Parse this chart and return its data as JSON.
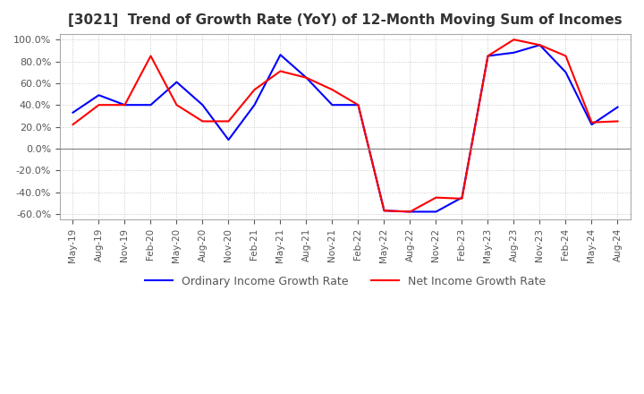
{
  "title": "[3021]  Trend of Growth Rate (YoY) of 12-Month Moving Sum of Incomes",
  "title_fontsize": 11,
  "ylim": [
    -0.65,
    1.05
  ],
  "yticks": [
    -0.6,
    -0.4,
    -0.2,
    0.0,
    0.2,
    0.4,
    0.6,
    0.8,
    1.0
  ],
  "background_color": "#ffffff",
  "grid_color": "#c8c8c8",
  "legend_labels": [
    "Ordinary Income Growth Rate",
    "Net Income Growth Rate"
  ],
  "line_colors": [
    "blue",
    "red"
  ],
  "dates": [
    "May-19",
    "Aug-19",
    "Nov-19",
    "Feb-20",
    "May-20",
    "Aug-20",
    "Nov-20",
    "Feb-21",
    "May-21",
    "Aug-21",
    "Nov-21",
    "Feb-22",
    "May-22",
    "Aug-22",
    "Nov-22",
    "Feb-23",
    "May-23",
    "Aug-23",
    "Nov-23",
    "Feb-24",
    "May-24",
    "Aug-24"
  ],
  "xtick_labels": [
    "May-19",
    "Aug-19",
    "Nov-19",
    "Feb-20",
    "May-20",
    "Aug-20",
    "Nov-20",
    "Feb-21",
    "May-21",
    "Aug-21",
    "Nov-21",
    "Feb-22",
    "May-22",
    "Aug-22",
    "Nov-22",
    "Feb-23",
    "May-23",
    "Aug-23",
    "Nov-23",
    "Feb-24",
    "May-24",
    "Aug-24"
  ],
  "ordinary_income": [
    0.33,
    0.49,
    0.4,
    0.4,
    0.61,
    0.4,
    0.08,
    0.4,
    0.86,
    0.65,
    0.4,
    0.4,
    -0.57,
    -0.58,
    -0.58,
    -0.45,
    0.85,
    0.88,
    0.95,
    0.7,
    0.22,
    0.38
  ],
  "net_income": [
    0.22,
    0.4,
    0.4,
    0.85,
    0.4,
    0.25,
    0.25,
    0.54,
    0.71,
    0.65,
    0.54,
    0.4,
    -0.57,
    -0.58,
    -0.45,
    -0.46,
    0.85,
    1.0,
    0.95,
    0.85,
    0.24,
    0.25
  ]
}
